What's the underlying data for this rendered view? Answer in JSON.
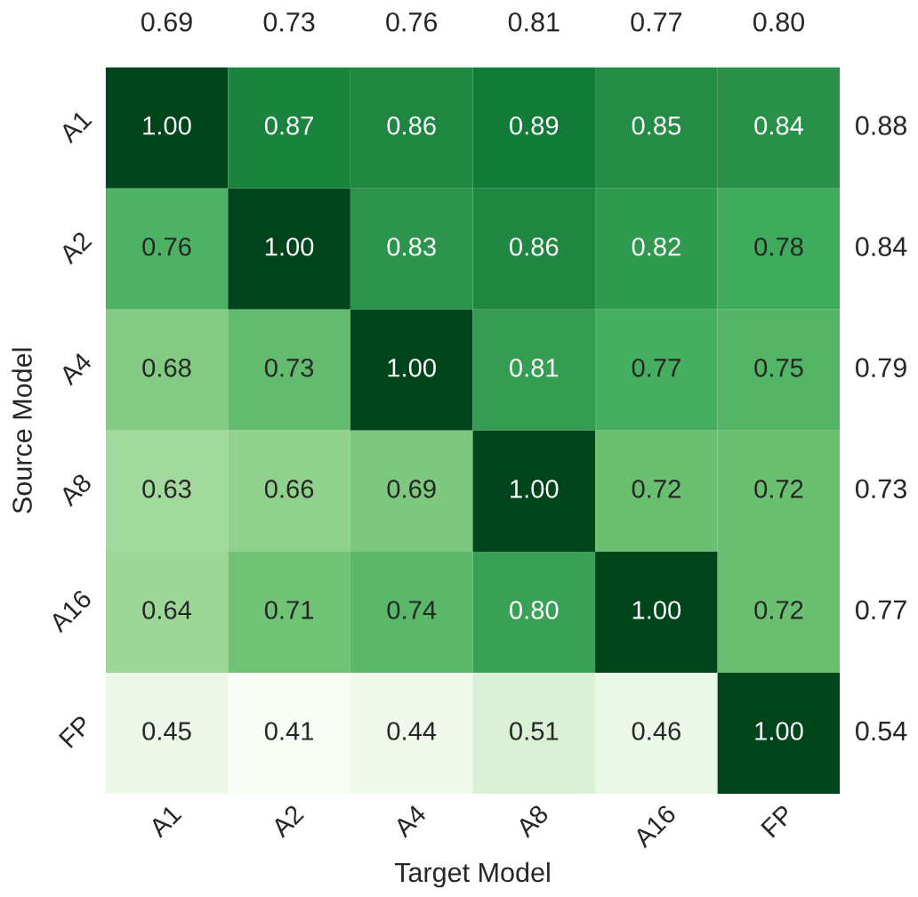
{
  "chart_data": {
    "type": "heatmap",
    "xlabel": "Target Model",
    "ylabel": "Source Model",
    "categories": [
      "A1",
      "A2",
      "A4",
      "A8",
      "A16",
      "FP"
    ],
    "y_categories": [
      "A1",
      "A2",
      "A4",
      "A8",
      "A16",
      "FP"
    ],
    "y2_categories": [
      "0.88",
      "0.84",
      "0.79",
      "0.73",
      "0.77",
      "0.54"
    ],
    "cells": [
      [
        1.0,
        0.87,
        0.86,
        0.89,
        0.85,
        0.84
      ],
      [
        0.76,
        1.0,
        0.83,
        0.86,
        0.82,
        0.78
      ],
      [
        0.68,
        0.73,
        1.0,
        0.81,
        0.77,
        0.75
      ],
      [
        0.63,
        0.66,
        0.69,
        1.0,
        0.72,
        0.72
      ],
      [
        0.64,
        0.71,
        0.74,
        0.8,
        1.0,
        0.72
      ],
      [
        0.45,
        0.41,
        0.44,
        0.51,
        0.46,
        1.0
      ]
    ],
    "cell_labels": [
      [
        "1.00",
        "0.87",
        "0.86",
        "0.89",
        "0.85",
        "0.84"
      ],
      [
        "0.76",
        "1.00",
        "0.83",
        "0.86",
        "0.82",
        "0.78"
      ],
      [
        "0.68",
        "0.73",
        "1.00",
        "0.81",
        "0.77",
        "0.75"
      ],
      [
        "0.63",
        "0.66",
        "0.69",
        "1.00",
        "0.72",
        "0.72"
      ],
      [
        "0.64",
        "0.71",
        "0.74",
        "0.80",
        "1.00",
        "0.72"
      ],
      [
        "0.45",
        "0.41",
        "0.44",
        "0.51",
        "0.46",
        "1.00"
      ]
    ],
    "annotations": [
      "0.69",
      "0.73",
      "0.76",
      "0.81",
      "0.77",
      "0.80"
    ]
  }
}
